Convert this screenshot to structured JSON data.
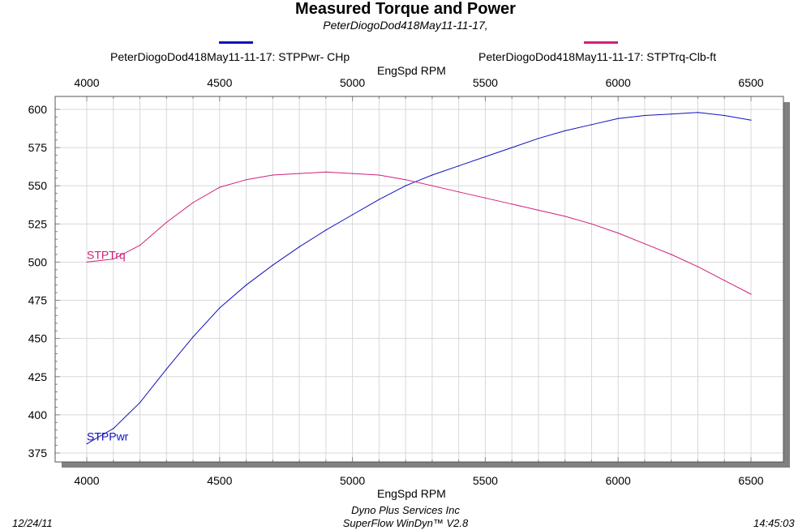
{
  "header": {
    "title": "Measured Torque and Power",
    "subtitle": "PeterDiogoDod418May11-11-17,"
  },
  "legend": [
    {
      "label": "PeterDiogoDod418May11-11-17: STPPwr- CHp",
      "color": "#1010c0"
    },
    {
      "label": "PeterDiogoDod418May11-11-17: STPTrq-Clb-ft",
      "color": "#d0207a"
    }
  ],
  "footer": {
    "date": "12/24/11",
    "company": "Dyno Plus Services Inc",
    "software": "SuperFlow WinDyn™ V2.8",
    "time": "14:45:03"
  },
  "chart_data": {
    "type": "line",
    "xlabel": "EngSpd  RPM",
    "top_xlabel": "EngSpd  RPM",
    "xlim": [
      4000,
      6500
    ],
    "ylim": [
      375,
      600
    ],
    "xticks": [
      4000,
      4500,
      5000,
      5500,
      6000,
      6500
    ],
    "yticks": [
      375,
      400,
      425,
      450,
      475,
      500,
      525,
      550,
      575,
      600
    ],
    "grid": true,
    "series": [
      {
        "name": "STPPwr",
        "color": "#1010c0",
        "x": [
          4000,
          4100,
          4200,
          4300,
          4400,
          4500,
          4600,
          4700,
          4800,
          4900,
          5000,
          5100,
          5200,
          5300,
          5400,
          5500,
          5600,
          5700,
          5800,
          5900,
          6000,
          6100,
          6200,
          6300,
          6400,
          6500
        ],
        "y": [
          381,
          391,
          408,
          430,
          451,
          470,
          485,
          498,
          510,
          521,
          531,
          541,
          550,
          557,
          563,
          569,
          575,
          581,
          586,
          590,
          594,
          596,
          597,
          598,
          596,
          593
        ]
      },
      {
        "name": "STPTrq",
        "color": "#d0207a",
        "x": [
          4000,
          4100,
          4200,
          4300,
          4400,
          4500,
          4600,
          4700,
          4800,
          4900,
          5000,
          5100,
          5200,
          5300,
          5400,
          5500,
          5600,
          5700,
          5800,
          5900,
          6000,
          6100,
          6200,
          6300,
          6400,
          6500
        ],
        "y": [
          500,
          502,
          511,
          526,
          539,
          549,
          554,
          557,
          558,
          559,
          558,
          557,
          554,
          550,
          546,
          542,
          538,
          534,
          530,
          525,
          519,
          512,
          505,
          497,
          488,
          479
        ]
      }
    ]
  }
}
